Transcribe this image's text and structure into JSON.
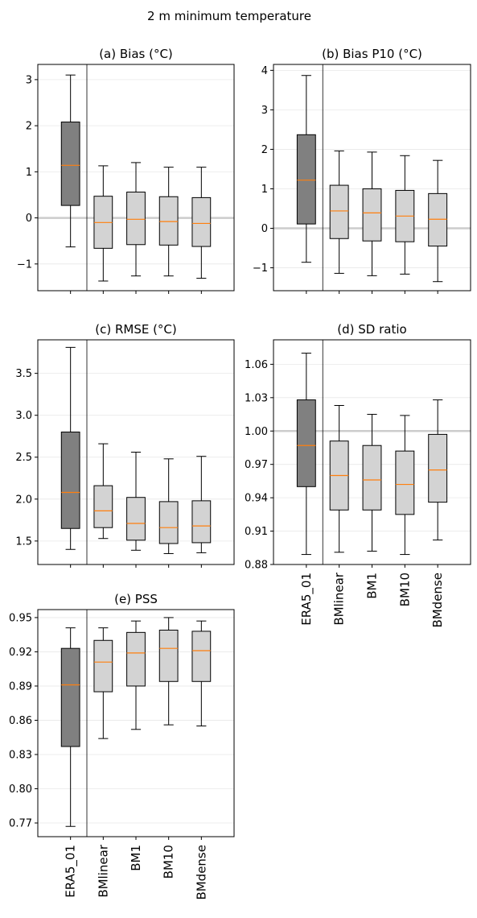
{
  "figure": {
    "suptitle": "2 m  minimum temperature"
  },
  "categories": [
    "ERA5_01",
    "BMlinear",
    "BM1",
    "BM10",
    "BMdense"
  ],
  "colors": {
    "reference_box": "#808080",
    "model_box": "#d3d3d3",
    "median": "#ff7f0e",
    "zero_line": "#cccccc",
    "grid": "#e8e8e8"
  },
  "chart_data": [
    {
      "type": "box",
      "title": "(a) Bias (°C)",
      "xlabel": "",
      "ylabel": "",
      "ylim": [
        -1.58,
        3.33
      ],
      "yticks": [
        -1,
        0,
        1,
        2,
        3
      ],
      "ytick_labels": [
        "−1",
        "0",
        "1",
        "2",
        "3"
      ],
      "reference_line": 0,
      "grid": "horizontal",
      "boxes": [
        {
          "category": "ERA5_01",
          "whisker_low": -0.63,
          "q1": 0.27,
          "median": 1.14,
          "q3": 2.08,
          "whisker_high": 3.1
        },
        {
          "category": "BMlinear",
          "whisker_low": -1.37,
          "q1": -0.66,
          "median": -0.1,
          "q3": 0.47,
          "whisker_high": 1.13
        },
        {
          "category": "BM1",
          "whisker_low": -1.26,
          "q1": -0.58,
          "median": -0.03,
          "q3": 0.56,
          "whisker_high": 1.2
        },
        {
          "category": "BM10",
          "whisker_low": -1.26,
          "q1": -0.59,
          "median": -0.08,
          "q3": 0.46,
          "whisker_high": 1.1
        },
        {
          "category": "BMdense",
          "whisker_low": -1.31,
          "q1": -0.62,
          "median": -0.12,
          "q3": 0.44,
          "whisker_high": 1.1
        }
      ]
    },
    {
      "type": "box",
      "title": "(b) Bias P10 (°C)",
      "xlabel": "",
      "ylabel": "",
      "ylim": [
        -1.58,
        4.15
      ],
      "yticks": [
        -1,
        0,
        1,
        2,
        3,
        4
      ],
      "ytick_labels": [
        "−1",
        "0",
        "1",
        "2",
        "3",
        "4"
      ],
      "reference_line": 0,
      "grid": "horizontal",
      "boxes": [
        {
          "category": "ERA5_01",
          "whisker_low": -0.86,
          "q1": 0.11,
          "median": 1.22,
          "q3": 2.37,
          "whisker_high": 3.87
        },
        {
          "category": "BMlinear",
          "whisker_low": -1.14,
          "q1": -0.26,
          "median": 0.44,
          "q3": 1.09,
          "whisker_high": 1.96
        },
        {
          "category": "BM1",
          "whisker_low": -1.2,
          "q1": -0.32,
          "median": 0.39,
          "q3": 1.0,
          "whisker_high": 1.93
        },
        {
          "category": "BM10",
          "whisker_low": -1.16,
          "q1": -0.34,
          "median": 0.31,
          "q3": 0.96,
          "whisker_high": 1.84
        },
        {
          "category": "BMdense",
          "whisker_low": -1.35,
          "q1": -0.45,
          "median": 0.23,
          "q3": 0.88,
          "whisker_high": 1.72
        }
      ]
    },
    {
      "type": "box",
      "title": "(c) RMSE (°C)",
      "xlabel": "",
      "ylabel": "",
      "ylim": [
        1.22,
        3.9
      ],
      "yticks": [
        1.5,
        2.0,
        2.5,
        3.0,
        3.5
      ],
      "ytick_labels": [
        "1.5",
        "2.0",
        "2.5",
        "3.0",
        "3.5"
      ],
      "grid": "horizontal",
      "boxes": [
        {
          "category": "ERA5_01",
          "whisker_low": 1.4,
          "q1": 1.65,
          "median": 2.08,
          "q3": 2.8,
          "whisker_high": 3.81
        },
        {
          "category": "BMlinear",
          "whisker_low": 1.53,
          "q1": 1.66,
          "median": 1.86,
          "q3": 2.16,
          "whisker_high": 2.66
        },
        {
          "category": "BM1",
          "whisker_low": 1.39,
          "q1": 1.51,
          "median": 1.71,
          "q3": 2.02,
          "whisker_high": 2.56
        },
        {
          "category": "BM10",
          "whisker_low": 1.35,
          "q1": 1.47,
          "median": 1.66,
          "q3": 1.97,
          "whisker_high": 2.48
        },
        {
          "category": "BMdense",
          "whisker_low": 1.36,
          "q1": 1.48,
          "median": 1.68,
          "q3": 1.98,
          "whisker_high": 2.51
        }
      ]
    },
    {
      "type": "box",
      "title": "(d) SD  ratio",
      "xlabel": "",
      "ylabel": "",
      "ylim": [
        0.88,
        1.082
      ],
      "yticks": [
        0.88,
        0.91,
        0.94,
        0.97,
        1.0,
        1.03,
        1.06
      ],
      "ytick_labels": [
        "0.88",
        "0.91",
        "0.94",
        "0.97",
        "1.00",
        "1.03",
        "1.06"
      ],
      "reference_line": 1.0,
      "grid": "horizontal",
      "boxes": [
        {
          "category": "ERA5_01",
          "whisker_low": 0.889,
          "q1": 0.95,
          "median": 0.987,
          "q3": 1.028,
          "whisker_high": 1.07
        },
        {
          "category": "BMlinear",
          "whisker_low": 0.891,
          "q1": 0.929,
          "median": 0.96,
          "q3": 0.991,
          "whisker_high": 1.023
        },
        {
          "category": "BM1",
          "whisker_low": 0.892,
          "q1": 0.929,
          "median": 0.956,
          "q3": 0.987,
          "whisker_high": 1.015
        },
        {
          "category": "BM10",
          "whisker_low": 0.889,
          "q1": 0.925,
          "median": 0.952,
          "q3": 0.982,
          "whisker_high": 1.014
        },
        {
          "category": "BMdense",
          "whisker_low": 0.902,
          "q1": 0.936,
          "median": 0.965,
          "q3": 0.997,
          "whisker_high": 1.028
        }
      ]
    },
    {
      "type": "box",
      "title": "(e) PSS",
      "xlabel": "",
      "ylabel": "",
      "ylim": [
        0.758,
        0.957
      ],
      "yticks": [
        0.77,
        0.8,
        0.83,
        0.86,
        0.89,
        0.92,
        0.95
      ],
      "ytick_labels": [
        "0.77",
        "0.80",
        "0.83",
        "0.86",
        "0.89",
        "0.92",
        "0.95"
      ],
      "grid": "horizontal",
      "boxes": [
        {
          "category": "ERA5_01",
          "whisker_low": 0.767,
          "q1": 0.837,
          "median": 0.891,
          "q3": 0.923,
          "whisker_high": 0.941
        },
        {
          "category": "BMlinear",
          "whisker_low": 0.844,
          "q1": 0.885,
          "median": 0.911,
          "q3": 0.93,
          "whisker_high": 0.941
        },
        {
          "category": "BM1",
          "whisker_low": 0.852,
          "q1": 0.89,
          "median": 0.919,
          "q3": 0.937,
          "whisker_high": 0.947
        },
        {
          "category": "BM10",
          "whisker_low": 0.856,
          "q1": 0.894,
          "median": 0.923,
          "q3": 0.939,
          "whisker_high": 0.95
        },
        {
          "category": "BMdense",
          "whisker_low": 0.855,
          "q1": 0.894,
          "median": 0.921,
          "q3": 0.938,
          "whisker_high": 0.947
        }
      ]
    }
  ]
}
